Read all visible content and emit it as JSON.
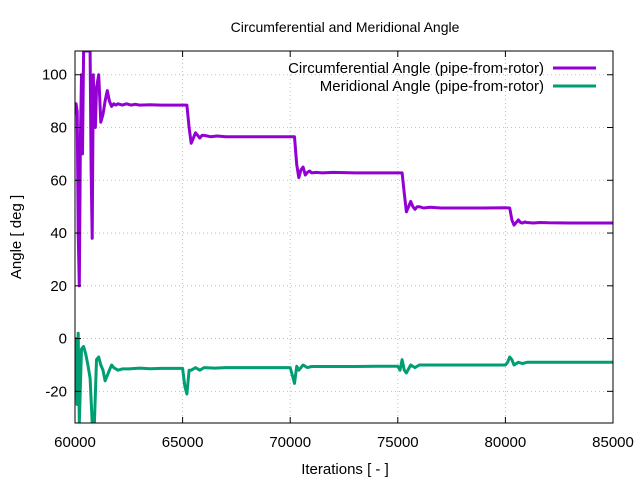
{
  "chart_data": {
    "type": "line",
    "title": "Circumferential and Meridional Angle",
    "xlabel": "Iterations [ - ]",
    "ylabel": "Angle [ deg ]",
    "xlim": [
      60000,
      85000
    ],
    "ylim": [
      -32,
      109
    ],
    "xticks": [
      60000,
      65000,
      70000,
      75000,
      80000,
      85000
    ],
    "yticks": [
      -20,
      0,
      20,
      40,
      60,
      80,
      100
    ],
    "grid": true,
    "legend_position": "top-right",
    "series": [
      {
        "name": "Circumferential Angle (pipe-from-rotor)",
        "color": "#9400d3",
        "x": [
          60000,
          60050,
          60100,
          60150,
          60200,
          60250,
          60300,
          60350,
          60400,
          60500,
          60600,
          60700,
          60750,
          60800,
          60850,
          60900,
          60950,
          61000,
          61100,
          61200,
          61300,
          61400,
          61500,
          61600,
          61700,
          61800,
          61900,
          62000,
          62200,
          62400,
          62600,
          62800,
          63000,
          63500,
          64000,
          64500,
          65000,
          65200,
          65300,
          65400,
          65500,
          65600,
          65700,
          65800,
          65900,
          66000,
          66300,
          66600,
          67000,
          68000,
          69000,
          70000,
          70200,
          70300,
          70400,
          70500,
          70600,
          70700,
          70800,
          70900,
          71000,
          71200,
          71500,
          72000,
          73000,
          74000,
          75000,
          75200,
          75300,
          75400,
          75500,
          75600,
          75700,
          75800,
          75900,
          76000,
          76200,
          76500,
          77000,
          78000,
          79000,
          80000,
          80200,
          80300,
          80400,
          80500,
          80600,
          80700,
          80800,
          80900,
          81000,
          81300,
          81600,
          82000,
          83000,
          84000,
          85000
        ],
        "values": [
          85,
          89,
          86,
          40,
          20,
          75,
          100,
          70,
          109,
          109,
          109,
          109,
          65,
          38,
          100,
          82,
          80,
          95,
          100,
          82,
          85,
          90,
          94,
          90,
          88,
          89,
          88.5,
          89,
          88.5,
          89,
          88.5,
          88.8,
          88.5,
          88.6,
          88.5,
          88.5,
          88.5,
          88.5,
          80,
          74,
          76,
          78,
          77,
          76,
          77,
          77,
          76.5,
          76.8,
          76.5,
          76.5,
          76.5,
          76.5,
          76.5,
          66,
          61,
          64,
          65,
          62,
          63,
          63.5,
          62.8,
          63,
          62.8,
          63,
          62.8,
          62.8,
          62.8,
          62.8,
          55,
          48,
          50,
          52,
          50,
          49,
          50,
          50,
          49.5,
          49.8,
          49.5,
          49.5,
          49.5,
          49.6,
          49.5,
          45,
          43,
          44,
          45,
          44,
          43.8,
          44.2,
          44,
          43.8,
          44,
          43.9,
          43.8,
          43.8,
          43.8
        ]
      },
      {
        "name": "Meridional Angle (pipe-from-rotor)",
        "color": "#009e73",
        "x": [
          60000,
          60050,
          60100,
          60150,
          60200,
          60300,
          60400,
          60500,
          60600,
          60700,
          60800,
          60900,
          61000,
          61100,
          61200,
          61300,
          61400,
          61500,
          61600,
          61700,
          61800,
          62000,
          62200,
          62500,
          63000,
          63500,
          64000,
          64500,
          65000,
          65100,
          65200,
          65300,
          65400,
          65600,
          65800,
          66000,
          66500,
          67000,
          68000,
          69000,
          70000,
          70100,
          70200,
          70300,
          70400,
          70600,
          70800,
          71000,
          71500,
          72000,
          73000,
          74000,
          75000,
          75100,
          75200,
          75300,
          75400,
          75600,
          75800,
          76000,
          76500,
          77000,
          78000,
          79000,
          80000,
          80100,
          80200,
          80300,
          80400,
          80600,
          80800,
          81000,
          81500,
          82000,
          83000,
          84000,
          85000
        ],
        "values": [
          -10,
          0,
          -25,
          2,
          -32,
          -4,
          -3,
          -6,
          -10,
          -15,
          -32,
          -32,
          -8,
          -7,
          -10,
          -12,
          -16,
          -14,
          -12,
          -10,
          -11,
          -12,
          -11.5,
          -11.5,
          -11.2,
          -11.4,
          -11.3,
          -11.3,
          -11.3,
          -18,
          -21,
          -12,
          -12,
          -11,
          -12,
          -11,
          -11.2,
          -11,
          -11,
          -11,
          -11,
          -14,
          -17,
          -10.5,
          -12,
          -10,
          -11,
          -10.6,
          -10.6,
          -10.6,
          -10.6,
          -10.5,
          -10.5,
          -12,
          -8,
          -12,
          -13,
          -10,
          -11,
          -10,
          -10,
          -10,
          -10,
          -10,
          -10,
          -9,
          -7,
          -8,
          -10,
          -9,
          -9.5,
          -9,
          -9,
          -9,
          -9,
          -9,
          -9
        ]
      }
    ]
  }
}
